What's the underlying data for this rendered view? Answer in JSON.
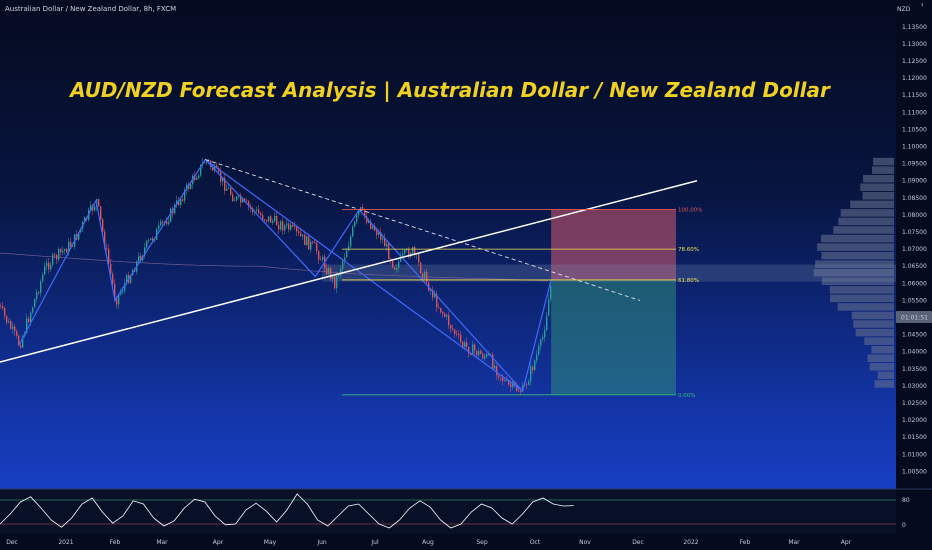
{
  "header": {
    "symbol": "Australian Dollar / New Zealand Dollar, 8h, FXCM",
    "currency": "NZD",
    "title": "AUD/NZD Forecast Analysis | Australian Dollar / New Zealand Dollar"
  },
  "colors": {
    "background_top": "#050a1f",
    "background_bottom": "#1b47d8",
    "candle_up": "#26a69a",
    "candle_down": "#ef5350",
    "title": "#f0d020",
    "pattern_lines": "#3f6bff",
    "target_zone": "#d65a6e",
    "stop_zone": "#2e8a7a",
    "fib_100": "#e05858",
    "fib_786": "#f0e050",
    "fib_618": "#f0e050",
    "fib_0": "#3cb878",
    "oscillator": "#ffffff"
  },
  "price_label": {
    "value": "1.05500",
    "time": "01:01:51"
  },
  "oscillator_ticks": [
    "80",
    "0"
  ],
  "chart_data": {
    "type": "line",
    "x_labels": [
      "Dec",
      "2021",
      "Feb",
      "Mar",
      "Apr",
      "May",
      "Jun",
      "Jul",
      "Aug",
      "Sep",
      "Oct",
      "Nov",
      "Dec",
      "2022",
      "Feb",
      "Mar",
      "Apr"
    ],
    "y_ticks": [
      "1.13500",
      "1.13000",
      "1.12500",
      "1.12000",
      "1.11500",
      "1.11000",
      "1.10500",
      "1.10000",
      "1.09500",
      "1.09000",
      "1.08500",
      "1.08000",
      "1.07500",
      "1.07000",
      "1.06500",
      "1.06000",
      "1.05500",
      "1.05000",
      "1.04500",
      "1.04000",
      "1.03500",
      "1.03000",
      "1.02500",
      "1.02000",
      "1.01500",
      "1.01000",
      "1.00500"
    ],
    "ylim": [
      1.0025,
      1.1405
    ],
    "series": [
      {
        "x": [
          "2020-11-23",
          "2020-12-05",
          "2020-12-20",
          "2021-01-05",
          "2021-01-20",
          "2021-02-01",
          "2021-02-18",
          "2021-03-05",
          "2021-03-25",
          "2021-04-10",
          "2021-04-25",
          "2021-05-12",
          "2021-05-28",
          "2021-06-08",
          "2021-06-22",
          "2021-07-05",
          "2021-07-12",
          "2021-07-22",
          "2021-08-05",
          "2021-08-20",
          "2021-09-05",
          "2021-09-15",
          "2021-09-24",
          "2021-10-05",
          "2021-10-11"
        ],
        "y": [
          1.0535,
          1.042,
          1.065,
          1.072,
          1.0842,
          1.055,
          1.07,
          1.08,
          1.0962,
          1.085,
          1.08,
          1.076,
          1.07,
          1.06,
          1.0815,
          1.073,
          1.065,
          1.07,
          1.055,
          1.042,
          1.038,
          1.03,
          1.0285,
          1.043,
          1.061
        ]
      }
    ],
    "fibonacci": [
      {
        "label": "100.00%",
        "price": 1.0816
      },
      {
        "label": "78.60%",
        "price": 1.07
      },
      {
        "label": "61.80%",
        "price": 1.061
      },
      {
        "label": "0.00%",
        "price": 1.0274
      }
    ],
    "oscillator": {
      "levels": [
        80,
        20
      ],
      "values": [
        20,
        45,
        75,
        88,
        60,
        30,
        12,
        35,
        70,
        85,
        50,
        22,
        40,
        78,
        70,
        35,
        15,
        28,
        60,
        82,
        75,
        40,
        18,
        20,
        55,
        72,
        52,
        25,
        55,
        95,
        70,
        30,
        15,
        40,
        65,
        70,
        45,
        20,
        10,
        30,
        60,
        78,
        62,
        30,
        10,
        20,
        50,
        70,
        60,
        35,
        20,
        45,
        75,
        85,
        70,
        65,
        66
      ]
    }
  }
}
